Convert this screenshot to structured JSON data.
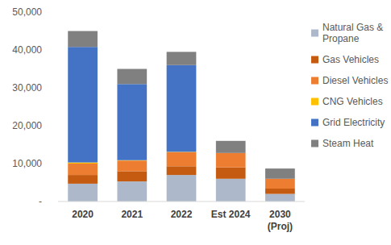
{
  "chart_data": {
    "type": "bar",
    "stacked": true,
    "grid": false,
    "legend": "right",
    "categories": [
      "2020",
      "2021",
      "2022",
      "Est 2024",
      "2030 (Proj)"
    ],
    "series": [
      {
        "name": "Natural Gas & Propane",
        "color": "#adb9ca",
        "values": [
          4700,
          5300,
          7000,
          6000,
          2000
        ]
      },
      {
        "name": "Gas Vehicles",
        "color": "#c55a11",
        "values": [
          2300,
          2700,
          2300,
          3000,
          1400
        ]
      },
      {
        "name": "Diesel Vehicles",
        "color": "#ed7d31",
        "values": [
          3000,
          2800,
          3700,
          3800,
          2600
        ]
      },
      {
        "name": "CNG Vehicles",
        "color": "#ffc000",
        "values": [
          300,
          100,
          100,
          0,
          0
        ]
      },
      {
        "name": "Grid Electricity",
        "color": "#4472c4",
        "values": [
          30500,
          20100,
          22900,
          0,
          0
        ]
      },
      {
        "name": "Steam Heat",
        "color": "#808080",
        "values": [
          4200,
          4000,
          3500,
          3200,
          2700
        ]
      }
    ],
    "ylim": [
      0,
      50000
    ],
    "yticks": [
      {
        "value": 0,
        "label": "-"
      },
      {
        "value": 10000,
        "label": "10,000"
      },
      {
        "value": 20000,
        "label": "20,000"
      },
      {
        "value": 30000,
        "label": "30,000"
      },
      {
        "value": 40000,
        "label": "40,000"
      },
      {
        "value": 50000,
        "label": "50,000"
      }
    ]
  }
}
